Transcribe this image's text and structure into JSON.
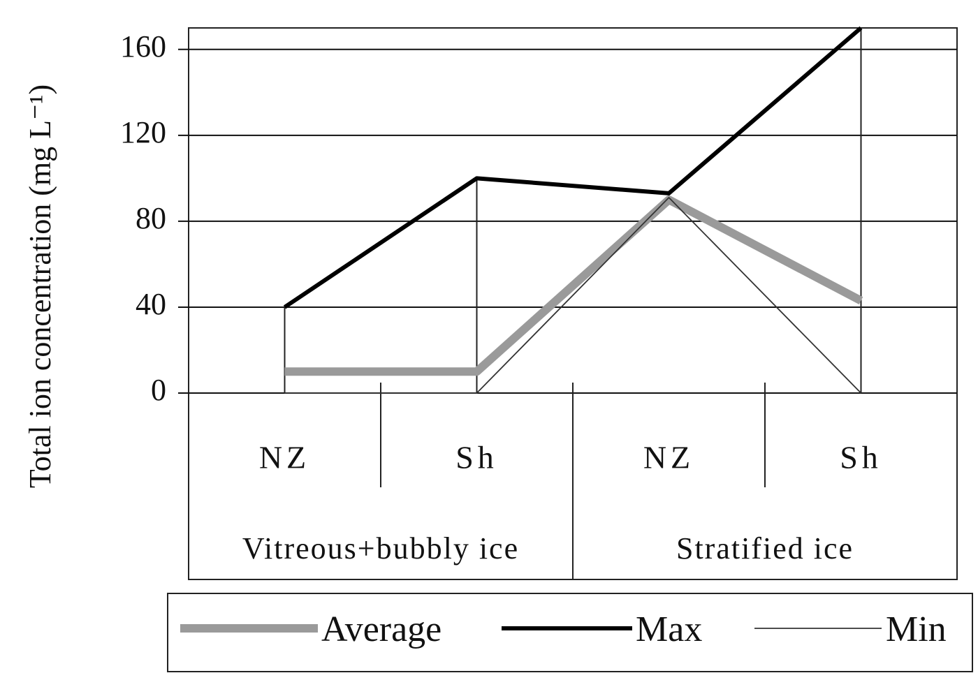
{
  "chart_data": {
    "type": "line",
    "y_label": "Total ion concentration (mg L⁻¹)",
    "categories": [
      "NZ",
      "Sh",
      "NZ",
      "Sh"
    ],
    "groups": [
      "Vitreous+bubbly ice",
      "Stratified ice"
    ],
    "series": [
      {
        "name": "Average",
        "color": "#9a9a9a",
        "values": [
          10,
          10,
          90,
          43
        ]
      },
      {
        "name": "Max",
        "color": "#000000",
        "values": [
          40,
          100,
          93,
          170
        ]
      },
      {
        "name": "Min",
        "color": "#333333",
        "values": [
          0,
          0,
          91,
          0
        ]
      }
    ],
    "ylim": [
      0,
      170
    ],
    "yticks": [
      0,
      40,
      80,
      120,
      160
    ],
    "grid": true,
    "high_low_lines": true,
    "legend": "bottom"
  }
}
